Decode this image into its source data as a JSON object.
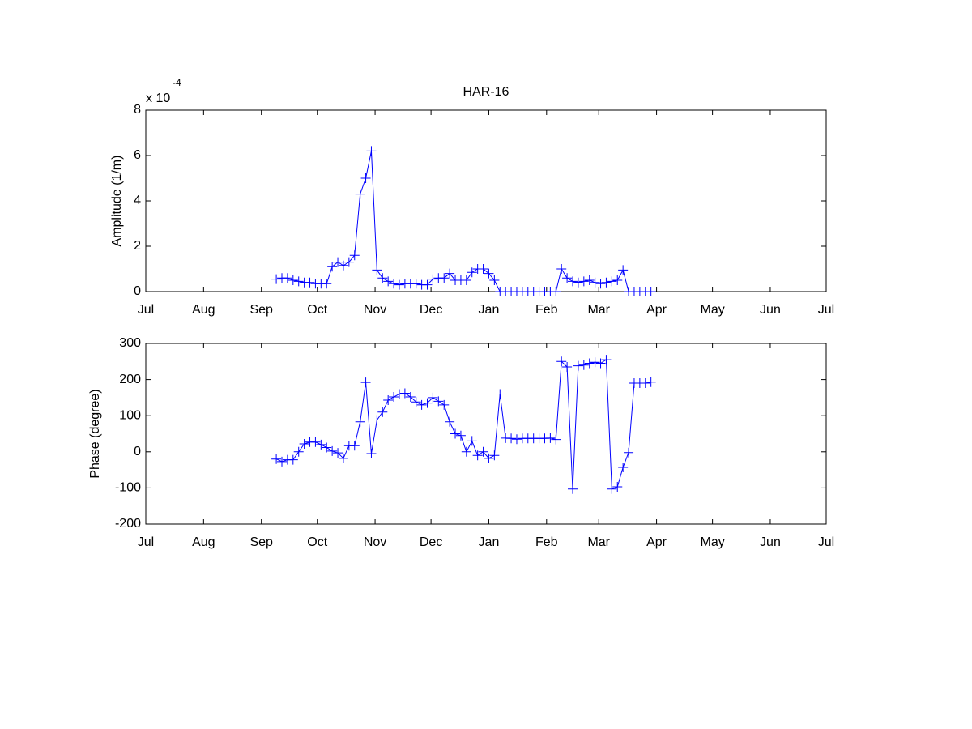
{
  "chart_data": [
    {
      "type": "line",
      "title": "HAR-16",
      "ylabel": "Amplitude (1/m)",
      "ylabel_scale": "x 10",
      "ylabel_scale_exponent": "-4",
      "xlim": [
        0,
        365
      ],
      "xticks": [
        {
          "value": 0,
          "label": "Jul"
        },
        {
          "value": 31,
          "label": "Aug"
        },
        {
          "value": 62,
          "label": "Sep"
        },
        {
          "value": 92,
          "label": "Oct"
        },
        {
          "value": 123,
          "label": "Nov"
        },
        {
          "value": 153,
          "label": "Dec"
        },
        {
          "value": 184,
          "label": "Jan"
        },
        {
          "value": 215,
          "label": "Feb"
        },
        {
          "value": 243,
          "label": "Mar"
        },
        {
          "value": 274,
          "label": "Apr"
        },
        {
          "value": 304,
          "label": "May"
        },
        {
          "value": 335,
          "label": "Jun"
        },
        {
          "value": 365,
          "label": "Jul"
        }
      ],
      "ylim": [
        0,
        8
      ],
      "yticks": [
        0,
        2,
        4,
        6,
        8
      ],
      "marker": "+",
      "x": [
        70,
        73,
        76,
        79,
        82,
        85,
        88,
        91,
        94,
        97,
        100,
        103,
        106,
        109,
        112,
        115,
        118,
        121,
        124,
        127,
        130,
        133,
        136,
        139,
        142,
        145,
        148,
        151,
        154,
        157,
        160,
        163,
        166,
        169,
        172,
        175,
        178,
        181,
        184,
        187,
        190,
        193,
        196,
        199,
        202,
        205,
        208,
        211,
        214,
        217,
        220,
        223,
        226,
        229,
        232,
        235,
        238,
        241,
        244,
        247,
        250,
        253,
        256,
        259,
        262,
        265,
        268,
        271
      ],
      "series": [
        {
          "color": "#0000ff",
          "values": [
            0.55,
            0.6,
            0.6,
            0.5,
            0.45,
            0.4,
            0.4,
            0.35,
            0.35,
            0.35,
            1.1,
            1.3,
            1.15,
            1.3,
            1.6,
            4.3,
            5.0,
            6.2,
            0.95,
            0.6,
            0.45,
            0.35,
            0.3,
            0.35,
            0.35,
            0.35,
            0.3,
            0.3,
            0.55,
            0.6,
            0.6,
            0.8,
            0.5,
            0.5,
            0.5,
            0.85,
            1.0,
            1.0,
            0.8,
            0.5,
            0,
            0,
            0,
            0,
            0,
            0,
            0,
            0,
            0,
            0,
            0,
            1.0,
            0.6,
            0.45,
            0.4,
            0.45,
            0.5,
            0.4,
            0.35,
            0.4,
            0.45,
            0.5,
            0.95,
            0,
            0,
            0,
            0,
            0
          ]
        }
      ]
    },
    {
      "type": "line",
      "ylabel": "Phase (degree)",
      "xlim": [
        0,
        365
      ],
      "xticks": [
        {
          "value": 0,
          "label": "Jul"
        },
        {
          "value": 31,
          "label": "Aug"
        },
        {
          "value": 62,
          "label": "Sep"
        },
        {
          "value": 92,
          "label": "Oct"
        },
        {
          "value": 123,
          "label": "Nov"
        },
        {
          "value": 153,
          "label": "Dec"
        },
        {
          "value": 184,
          "label": "Jan"
        },
        {
          "value": 215,
          "label": "Feb"
        },
        {
          "value": 243,
          "label": "Mar"
        },
        {
          "value": 274,
          "label": "Apr"
        },
        {
          "value": 304,
          "label": "May"
        },
        {
          "value": 335,
          "label": "Jun"
        },
        {
          "value": 365,
          "label": "Jul"
        }
      ],
      "ylim": [
        -200,
        300
      ],
      "yticks": [
        -200,
        -100,
        0,
        100,
        200,
        300
      ],
      "marker": "+",
      "x": [
        70,
        73,
        76,
        79,
        82,
        85,
        88,
        91,
        94,
        97,
        100,
        103,
        106,
        109,
        112,
        115,
        118,
        121,
        124,
        127,
        130,
        133,
        136,
        139,
        142,
        145,
        148,
        151,
        154,
        157,
        160,
        163,
        166,
        169,
        172,
        175,
        178,
        181,
        184,
        187,
        190,
        193,
        196,
        199,
        202,
        205,
        208,
        211,
        214,
        217,
        220,
        223,
        226,
        229,
        232,
        235,
        238,
        241,
        244,
        247,
        250,
        253,
        256,
        259,
        262,
        265,
        268,
        271
      ],
      "series": [
        {
          "color": "#0000ff",
          "values": [
            -20,
            -27,
            -22,
            -22,
            0,
            22,
            27,
            27,
            20,
            12,
            2,
            -3,
            -18,
            17,
            17,
            83,
            192,
            -5,
            88,
            110,
            143,
            152,
            160,
            162,
            152,
            138,
            130,
            135,
            150,
            140,
            130,
            83,
            50,
            45,
            0,
            30,
            -10,
            0,
            -18,
            -10,
            160,
            38,
            37,
            35,
            37,
            37,
            37,
            37,
            37,
            38,
            34,
            250,
            235,
            -103,
            238,
            240,
            245,
            248,
            245,
            255,
            -103,
            -97,
            -43,
            -2,
            190,
            190,
            190,
            193
          ]
        }
      ]
    }
  ]
}
